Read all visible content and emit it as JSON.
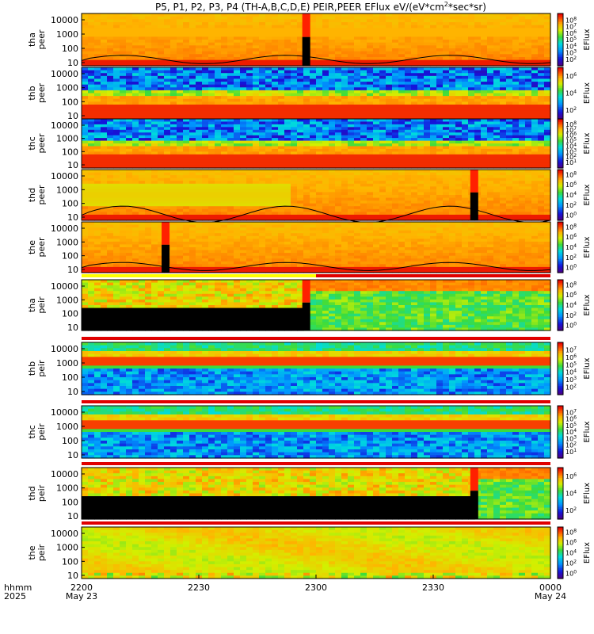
{
  "chart_data": {
    "type": "heatmap",
    "title": "P5, P1, P2, P3, P4 (TH-A,B,C,D,E) PEIR,PEER EFlux eV/(eV*cm2*sec*sr)",
    "colorbar_label": "EFlux",
    "x_label_row1": "hhmm",
    "x_label_row2": "2025",
    "x_ticks": [
      {
        "label": "2200",
        "date": "May 23",
        "minutes": 0
      },
      {
        "label": "2230",
        "date": "",
        "minutes": 30
      },
      {
        "label": "2300",
        "date": "",
        "minutes": 60
      },
      {
        "label": "2330",
        "date": "",
        "minutes": 90
      },
      {
        "label": "0000",
        "date": "May 24",
        "minutes": 120
      }
    ],
    "x_range_minutes": [
      0,
      120
    ],
    "y_scale": "log",
    "panels": [
      {
        "id": "tha-peer",
        "label_probe": "tha",
        "label_type": "peer",
        "species": "electron",
        "y_ticks": [
          "10000",
          "1000",
          "100",
          "10"
        ],
        "y_range": [
          7,
          30000
        ],
        "cbar_ticks": [
          "10^8",
          "10^7",
          "10^6",
          "10^5",
          "10^4",
          "10^3",
          "10^2"
        ],
        "cbar_range": [
          1,
          9
        ],
        "theme": "hot",
        "gap_at_minutes": 57.5,
        "has_line": true,
        "has_topbar": false
      },
      {
        "id": "thb-peer",
        "label_probe": "thb",
        "label_type": "peer",
        "species": "electron",
        "y_ticks": [
          "10000",
          "1000",
          "100",
          "10"
        ],
        "y_range": [
          7,
          30000
        ],
        "cbar_ticks": [
          "10^6",
          "10^4",
          "10^2"
        ],
        "cbar_range": [
          1,
          7
        ],
        "theme": "magnetosheath",
        "gap_at_minutes": null,
        "has_line": false,
        "has_topbar": false
      },
      {
        "id": "thc-peer",
        "label_probe": "thc",
        "label_type": "peer",
        "species": "electron",
        "y_ticks": [
          "10000",
          "1000",
          "100",
          "10"
        ],
        "y_range": [
          7,
          30000
        ],
        "cbar_ticks": [
          "10^8",
          "10^7",
          "10^6",
          "10^5",
          "10^4",
          "10^3",
          "10^2",
          "10^1"
        ],
        "cbar_range": [
          0,
          9
        ],
        "theme": "magnetosheath",
        "gap_at_minutes": null,
        "has_line": false,
        "has_topbar": false
      },
      {
        "id": "thd-peer",
        "label_probe": "thd",
        "label_type": "peer",
        "species": "electron",
        "y_ticks": [
          "10000",
          "1000",
          "100",
          "10"
        ],
        "y_range": [
          7,
          30000
        ],
        "cbar_ticks": [
          "10^8",
          "10^6",
          "10^4",
          "10^2",
          "10^0"
        ],
        "cbar_range": [
          -1,
          9
        ],
        "theme": "hot",
        "gap_at_minutes": 100.5,
        "has_line": true,
        "has_topbar": false
      },
      {
        "id": "the-peer",
        "label_probe": "the",
        "label_type": "peer",
        "species": "electron",
        "y_ticks": [
          "10000",
          "1000",
          "100",
          "10"
        ],
        "y_range": [
          5,
          30000
        ],
        "cbar_ticks": [
          "10^8",
          "10^6",
          "10^4",
          "10^2",
          "10^0"
        ],
        "cbar_range": [
          -1,
          9
        ],
        "theme": "hot",
        "gap_at_minutes": 21.5,
        "has_line": true,
        "has_topbar": false
      },
      {
        "id": "tha-peir",
        "label_probe": "tha",
        "label_type": "peir",
        "species": "ion",
        "y_ticks": [
          "10000",
          "1000",
          "100",
          "10"
        ],
        "y_range": [
          5,
          30000
        ],
        "cbar_ticks": [
          "10^8",
          "10^6",
          "10^4",
          "10^2",
          "10^0"
        ],
        "cbar_range": [
          -1,
          9
        ],
        "theme": "ion-black",
        "gap_at_minutes": 57.5,
        "has_line": false,
        "has_topbar": true
      },
      {
        "id": "thb-peir",
        "label_probe": "thb",
        "label_type": "peir",
        "species": "ion",
        "y_ticks": [
          "10000",
          "1000",
          "100",
          "10"
        ],
        "y_range": [
          5,
          30000
        ],
        "cbar_ticks": [
          "10^7",
          "10^6",
          "10^5",
          "10^4",
          "10^3",
          "10^2"
        ],
        "cbar_range": [
          1,
          8
        ],
        "theme": "solarwind",
        "gap_at_minutes": null,
        "has_line": false,
        "has_topbar": true
      },
      {
        "id": "thc-peir",
        "label_probe": "thc",
        "label_type": "peir",
        "species": "ion",
        "y_ticks": [
          "10000",
          "1000",
          "100",
          "10"
        ],
        "y_range": [
          5,
          30000
        ],
        "cbar_ticks": [
          "10^7",
          "10^6",
          "10^5",
          "10^4",
          "10^3",
          "10^2",
          "10^1"
        ],
        "cbar_range": [
          0,
          8
        ],
        "theme": "solarwind",
        "gap_at_minutes": null,
        "has_line": false,
        "has_topbar": true
      },
      {
        "id": "thd-peir",
        "label_probe": "thd",
        "label_type": "peir",
        "species": "ion",
        "y_ticks": [
          "10000",
          "1000",
          "100",
          "10"
        ],
        "y_range": [
          5,
          30000
        ],
        "cbar_ticks": [
          "10^6",
          "10^4",
          "10^2"
        ],
        "cbar_range": [
          1,
          7
        ],
        "theme": "ion-black",
        "gap_at_minutes": 100.5,
        "has_line": false,
        "has_topbar": true
      },
      {
        "id": "the-peir",
        "label_probe": "the",
        "label_type": "peir",
        "species": "ion",
        "y_ticks": [
          "10000",
          "1000",
          "100",
          "10"
        ],
        "y_range": [
          5,
          30000
        ],
        "cbar_ticks": [
          "10^8",
          "10^6",
          "10^4",
          "10^2",
          "10^0"
        ],
        "cbar_range": [
          -1,
          9
        ],
        "theme": "ion-warm",
        "gap_at_minutes": null,
        "has_line": false,
        "has_topbar": true
      }
    ]
  }
}
